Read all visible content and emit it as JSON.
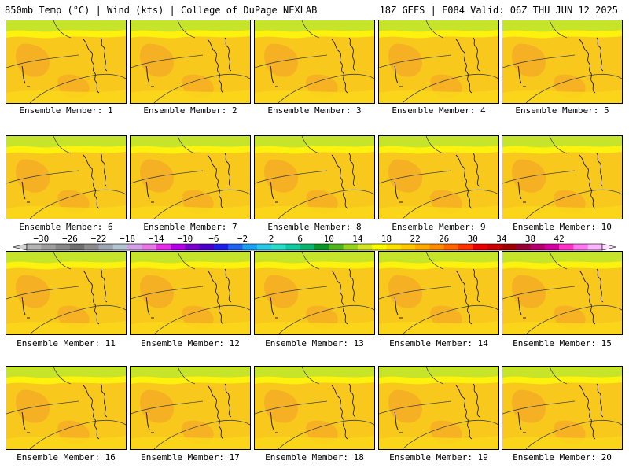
{
  "header": {
    "left": "850mb Temp (°C) | Wind (kts) | College of DuPage NEXLAB",
    "right": "18Z GEFS | F084 Valid: 06Z THU JUN 12 2025"
  },
  "members": [
    {
      "label": "Ensemble Member: 1"
    },
    {
      "label": "Ensemble Member: 2"
    },
    {
      "label": "Ensemble Member: 3"
    },
    {
      "label": "Ensemble Member: 4"
    },
    {
      "label": "Ensemble Member: 5"
    },
    {
      "label": "Ensemble Member: 6"
    },
    {
      "label": "Ensemble Member: 7"
    },
    {
      "label": "Ensemble Member: 8"
    },
    {
      "label": "Ensemble Member: 9"
    },
    {
      "label": "Ensemble Member: 10"
    },
    {
      "label": "Ensemble Member: 11"
    },
    {
      "label": "Ensemble Member: 12"
    },
    {
      "label": "Ensemble Member: 13"
    },
    {
      "label": "Ensemble Member: 14"
    },
    {
      "label": "Ensemble Member: 15"
    },
    {
      "label": "Ensemble Member: 16"
    },
    {
      "label": "Ensemble Member: 17"
    },
    {
      "label": "Ensemble Member: 18"
    },
    {
      "label": "Ensemble Member: 19"
    },
    {
      "label": "Ensemble Member: 20"
    }
  ],
  "colorbar": {
    "tick_labels": [
      "-30",
      "-26",
      "-22",
      "-18",
      "-14",
      "-10",
      "-6",
      "-2",
      "2",
      "6",
      "10",
      "14",
      "18",
      "22",
      "26",
      "30",
      "34",
      "38",
      "42"
    ],
    "colors": [
      "#b4b4b4",
      "#9d9d9d",
      "#878787",
      "#707070",
      "#8c8c8c",
      "#9ea6b4",
      "#b4c3d2",
      "#d2a0e6",
      "#e678e6",
      "#e62ee6",
      "#b400e6",
      "#7800c8",
      "#4b00c8",
      "#1e1ee6",
      "#1e64f0",
      "#1ea0f0",
      "#28c8e6",
      "#28dcc8",
      "#14c8a0",
      "#0ab46e",
      "#0a9628",
      "#50b41e",
      "#96d21e",
      "#d2e628",
      "#ffff00",
      "#ffe100",
      "#ffc800",
      "#ffaa00",
      "#ff8c00",
      "#ff6400",
      "#ff3200",
      "#e60000",
      "#c80000",
      "#a00000",
      "#960032",
      "#b4006e",
      "#d200a0",
      "#ff32c8",
      "#ff78f0",
      "#ffb4ff"
    ]
  }
}
